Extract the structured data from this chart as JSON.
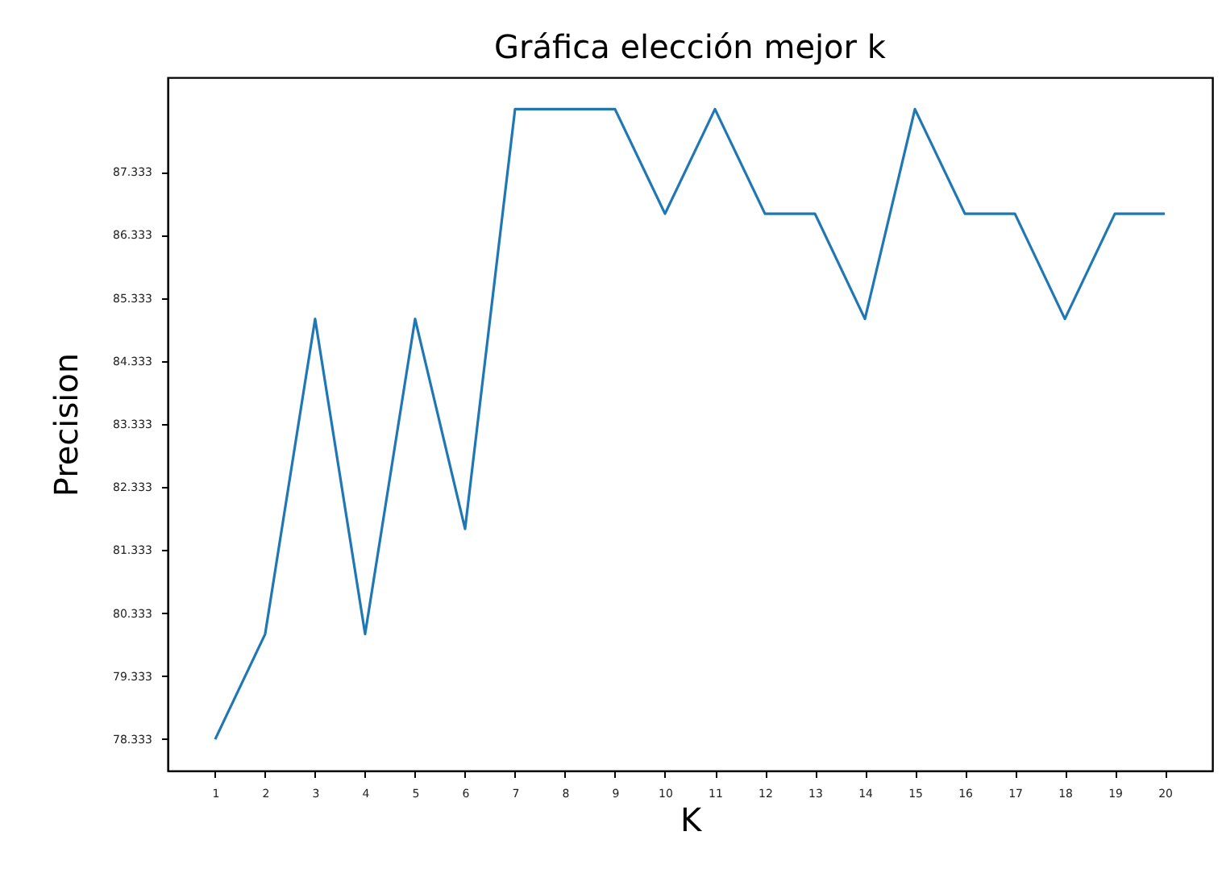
{
  "chart_data": {
    "type": "line",
    "title": "Gráfica elección mejor k",
    "xlabel": "K",
    "ylabel": "Precision",
    "x": [
      1,
      2,
      3,
      4,
      5,
      6,
      7,
      8,
      9,
      10,
      11,
      12,
      13,
      14,
      15,
      16,
      17,
      18,
      19,
      20
    ],
    "series": [
      {
        "color": "#1f77b4",
        "values": [
          78.33,
          80.0,
          85.0,
          80.0,
          85.0,
          81.67,
          88.33,
          88.33,
          88.33,
          86.67,
          88.33,
          86.67,
          86.67,
          85.0,
          88.33,
          86.67,
          86.67,
          85.0,
          86.67,
          86.67
        ]
      }
    ],
    "xlim": [
      0.05,
      20.95
    ],
    "xticks": [
      1,
      2,
      3,
      4,
      5,
      6,
      7,
      8,
      9,
      10,
      11,
      12,
      13,
      14,
      15,
      16,
      17,
      18,
      19,
      20
    ],
    "ylim": [
      77.833,
      88.833
    ],
    "yticks": [
      78.333,
      79.333,
      80.333,
      81.333,
      82.333,
      83.333,
      84.333,
      85.333,
      86.333,
      87.333
    ],
    "grid": false,
    "marker": "none",
    "line_style": "solid"
  }
}
